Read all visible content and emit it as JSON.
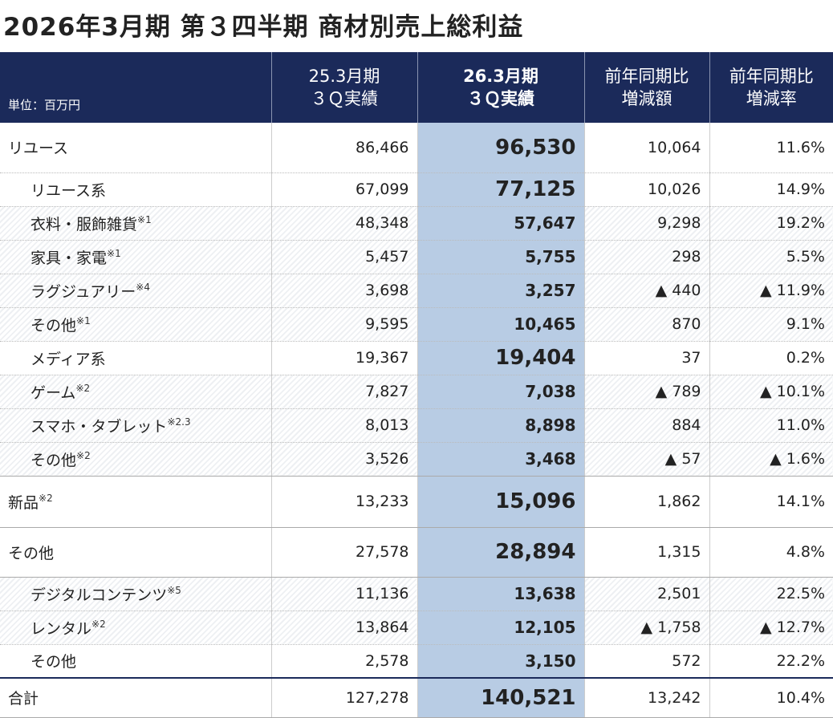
{
  "title": "2026年3月期 第３四半期 商材別売上総利益",
  "table": {
    "unit": "単位：百万円",
    "header": [
      [
        "25.3月期",
        "３Ｑ実績"
      ],
      [
        "26.3月期",
        "３Ｑ実績"
      ],
      [
        "前年同期比",
        "増減額"
      ],
      [
        "前年同期比",
        "増減率"
      ]
    ],
    "rows": [
      {
        "label": "リユース",
        "cells": [
          "86,466",
          "96,530",
          "10,064",
          "11.6%"
        ]
      },
      {
        "label": "リユース系",
        "cells": [
          "67,099",
          "77,125",
          "10,026",
          "14.9%"
        ]
      },
      {
        "label": "衣料・服飾雑貨",
        "note": "※1",
        "cells": [
          "48,348",
          "57,647",
          "9,298",
          "19.2%"
        ]
      },
      {
        "label": "家具・家電",
        "note": "※1",
        "cells": [
          "5,457",
          "5,755",
          "298",
          "5.5%"
        ]
      },
      {
        "label": "ラグジュアリー",
        "note": "※4",
        "cells": [
          "3,698",
          "3,257",
          "▲ 440",
          "▲ 11.9%"
        ]
      },
      {
        "label": "その他",
        "note": "※1",
        "cells": [
          "9,595",
          "10,465",
          "870",
          "9.1%"
        ]
      },
      {
        "label": "メディア系",
        "cells": [
          "19,367",
          "19,404",
          "37",
          "0.2%"
        ]
      },
      {
        "label": "ゲーム",
        "note": "※2",
        "cells": [
          "7,827",
          "7,038",
          "▲ 789",
          "▲ 10.1%"
        ]
      },
      {
        "label": "スマホ・タブレット",
        "note": "※2.3",
        "cells": [
          "8,013",
          "8,898",
          "884",
          "11.0%"
        ]
      },
      {
        "label": "その他",
        "note": "※2",
        "cells": [
          "3,526",
          "3,468",
          "▲ 57",
          "▲ 1.6%"
        ]
      },
      {
        "label": "新品",
        "note": "※2",
        "cells": [
          "13,233",
          "15,096",
          "1,862",
          "14.1%"
        ]
      },
      {
        "label": "その他",
        "cells": [
          "27,578",
          "28,894",
          "1,315",
          "4.8%"
        ]
      },
      {
        "label": "デジタルコンテンツ",
        "note": "※5",
        "cells": [
          "11,136",
          "13,638",
          "2,501",
          "22.5%"
        ]
      },
      {
        "label": "レンタル",
        "note": "※2",
        "cells": [
          "13,864",
          "12,105",
          "▲ 1,758",
          "▲ 12.7%"
        ]
      },
      {
        "label": "その他",
        "cells": [
          "2,578",
          "3,150",
          "572",
          "22.2%"
        ]
      },
      {
        "label": "合計",
        "cells": [
          "127,278",
          "140,521",
          "13,242",
          "10.4%"
        ]
      }
    ]
  }
}
